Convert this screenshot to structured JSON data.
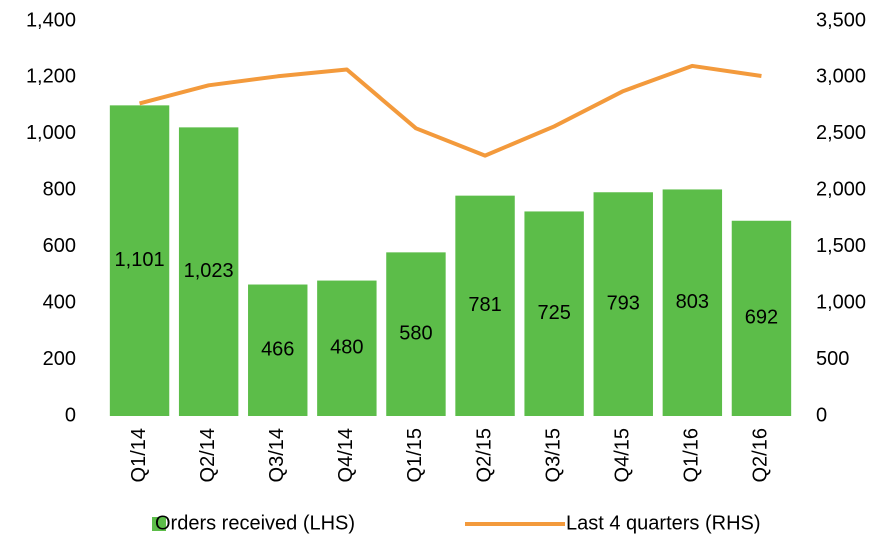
{
  "chart_data": {
    "type": "bar",
    "categories": [
      "Q1/14",
      "Q2/14",
      "Q3/14",
      "Q4/14",
      "Q1/15",
      "Q2/15",
      "Q3/15",
      "Q4/15",
      "Q1/16",
      "Q2/16"
    ],
    "series": [
      {
        "name": "Orders received (LHS)",
        "color": "#5cbd49",
        "type": "bar",
        "values": [
          1101,
          1023,
          466,
          480,
          580,
          781,
          725,
          793,
          803,
          692
        ],
        "value_labels": [
          "1,101",
          "1,023",
          "466",
          "480",
          "580",
          "781",
          "725",
          "793",
          "803",
          "692"
        ]
      },
      {
        "name": "Last 4 quarters (RHS)",
        "color": "#f39a3c",
        "type": "line",
        "axis": "y2",
        "values": [
          2770,
          2930,
          3010,
          3070,
          2549,
          2307,
          2566,
          2879,
          3102,
          3013
        ]
      }
    ],
    "ylim": [
      0,
      1400
    ],
    "yticks": [
      0,
      200,
      400,
      600,
      800,
      {
        "value": 1000,
        "label": "1,000"
      },
      {
        "value": 1200,
        "label": "1,200"
      },
      {
        "value": 1400,
        "label": "1,400"
      }
    ],
    "y2lim": [
      0,
      3500
    ],
    "y2ticks": [
      0,
      500,
      {
        "value": 1000,
        "label": "1,000"
      },
      {
        "value": 1500,
        "label": "1,500"
      },
      {
        "value": 2000,
        "label": "2,000"
      },
      {
        "value": 2500,
        "label": "2,500"
      },
      {
        "value": 3000,
        "label": "3,000"
      },
      {
        "value": 3500,
        "label": "3,500"
      }
    ],
    "grid": false,
    "legend": "bottom"
  }
}
